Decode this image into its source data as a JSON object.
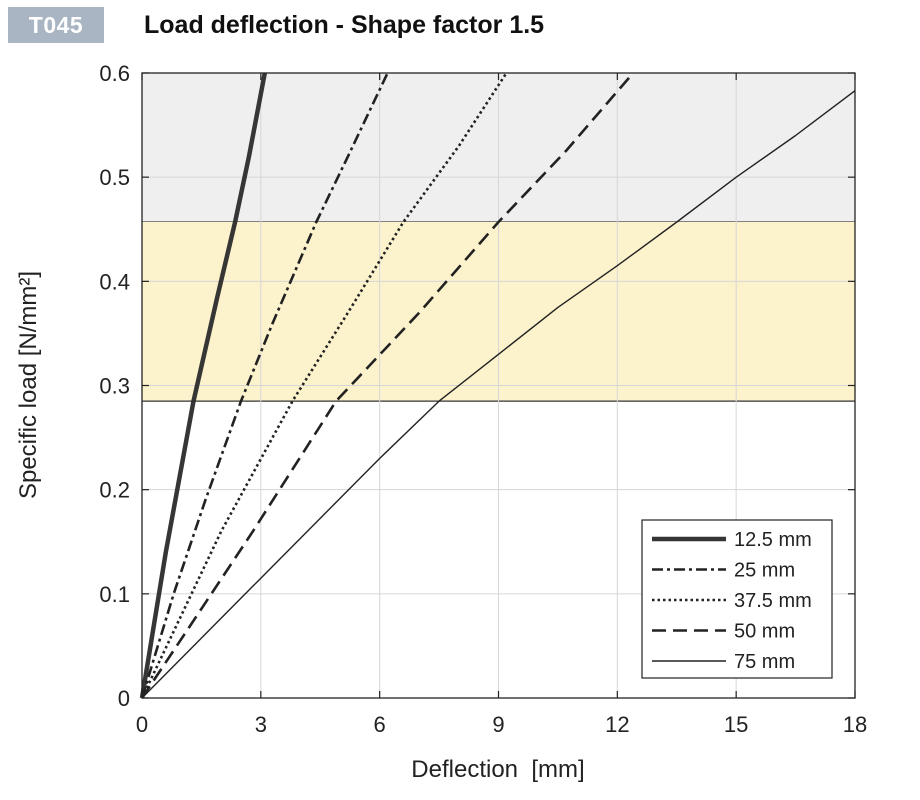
{
  "header": {
    "code": "T045",
    "title": "Load deflection - Shape factor 1.5"
  },
  "chart_data": {
    "type": "line",
    "xlabel": "Deflection  [mm]",
    "ylabel": "Specific load [N/mm²]",
    "xlim": [
      0,
      18
    ],
    "ylim": [
      0,
      0.6
    ],
    "xticks": [
      0,
      3,
      6,
      9,
      12,
      15,
      18
    ],
    "yticks": [
      0,
      0.1,
      0.2,
      0.3,
      0.4,
      0.5,
      0.6
    ],
    "ytick_labels": [
      "0",
      "0.1",
      "0.2",
      "0.3",
      "0.4",
      "0.5",
      "0.6"
    ],
    "grid": true,
    "legend_position": "bottom-right",
    "bands": [
      {
        "y_from": 0.457,
        "y_to": 0.6,
        "color": "#efefef"
      },
      {
        "y_from": 0.285,
        "y_to": 0.457,
        "color": "#fcf2cc"
      }
    ],
    "series": [
      {
        "name": "12.5 mm",
        "style": "solid-thick",
        "color": "#2b2b2b",
        "x": [
          0,
          0.6,
          1.3,
          1.9,
          2.35,
          2.7,
          3.1
        ],
        "y": [
          0,
          0.14,
          0.285,
          0.385,
          0.457,
          0.52,
          0.6
        ]
      },
      {
        "name": "25 mm",
        "style": "dashdot",
        "color": "#222222",
        "x": [
          0,
          0.8,
          1.6,
          2.5,
          3.3,
          4.4,
          5.2,
          6.2
        ],
        "y": [
          0,
          0.1,
          0.19,
          0.285,
          0.36,
          0.457,
          0.52,
          0.6
        ]
      },
      {
        "name": "37.5 mm",
        "style": "dotted",
        "color": "#222222",
        "x": [
          0,
          1.0,
          2.0,
          3.8,
          5.2,
          6.6,
          8.0,
          9.2
        ],
        "y": [
          0,
          0.08,
          0.16,
          0.285,
          0.37,
          0.457,
          0.53,
          0.6
        ]
      },
      {
        "name": "50 mm",
        "style": "dashed",
        "color": "#222222",
        "x": [
          0,
          1.4,
          2.8,
          4.9,
          7.0,
          9.0,
          10.7,
          12.4
        ],
        "y": [
          0,
          0.08,
          0.16,
          0.285,
          0.37,
          0.457,
          0.525,
          0.6
        ]
      },
      {
        "name": "75 mm",
        "style": "solid-thin",
        "color": "#222222",
        "x": [
          0,
          3.0,
          6.0,
          7.5,
          9.0,
          10.5,
          12.0,
          13.5,
          15.0,
          16.5,
          18.0
        ],
        "y": [
          0,
          0.115,
          0.23,
          0.285,
          0.33,
          0.375,
          0.415,
          0.457,
          0.5,
          0.54,
          0.583
        ]
      }
    ]
  }
}
